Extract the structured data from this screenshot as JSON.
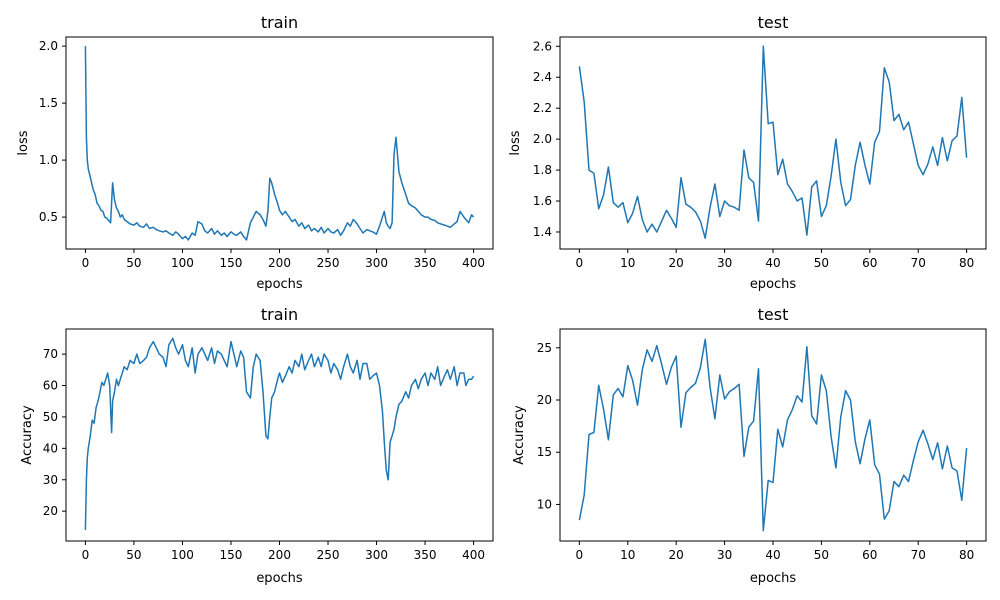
{
  "chart_data": [
    {
      "type": "line",
      "title": "train",
      "xlabel": "epochs",
      "ylabel": "loss",
      "xlim": [
        -20,
        420
      ],
      "ylim": [
        0.22,
        2.08
      ],
      "xticks": [
        0,
        50,
        100,
        150,
        200,
        250,
        300,
        350,
        400
      ],
      "yticks": [
        0.5,
        1.0,
        1.5,
        2.0
      ],
      "ytick_labels": [
        "0.5",
        "1.0",
        "1.5",
        "2.0"
      ],
      "color": "#1f77b4",
      "series": [
        {
          "x": [
            0,
            1,
            2,
            3,
            5,
            8,
            10,
            12,
            14,
            16,
            18,
            20,
            22,
            24,
            26,
            28,
            30,
            32,
            34,
            36,
            38,
            40,
            43,
            46,
            50,
            53,
            56,
            60,
            63,
            66,
            70,
            73,
            76,
            80,
            83,
            86,
            90,
            93,
            96,
            100,
            103,
            106,
            110,
            113,
            116,
            120,
            123,
            126,
            130,
            133,
            136,
            140,
            143,
            146,
            150,
            153,
            156,
            160,
            163,
            166,
            170,
            173,
            176,
            180,
            183,
            186,
            188,
            190,
            192,
            195,
            198,
            200,
            203,
            206,
            210,
            213,
            216,
            220,
            223,
            226,
            230,
            233,
            236,
            240,
            243,
            246,
            250,
            253,
            256,
            260,
            263,
            266,
            270,
            273,
            276,
            280,
            283,
            286,
            290,
            293,
            296,
            300,
            303,
            306,
            308,
            310,
            312,
            314,
            316,
            318,
            320,
            323,
            326,
            330,
            333,
            336,
            340,
            343,
            346,
            350,
            353,
            356,
            360,
            363,
            366,
            370,
            373,
            376,
            380,
            383,
            386,
            390,
            392,
            395,
            398,
            400
          ],
          "y": [
            2.0,
            1.2,
            1.0,
            0.92,
            0.85,
            0.74,
            0.7,
            0.62,
            0.6,
            0.56,
            0.55,
            0.5,
            0.49,
            0.47,
            0.45,
            0.8,
            0.65,
            0.58,
            0.55,
            0.5,
            0.52,
            0.48,
            0.46,
            0.44,
            0.43,
            0.45,
            0.42,
            0.41,
            0.44,
            0.4,
            0.41,
            0.39,
            0.38,
            0.37,
            0.38,
            0.36,
            0.34,
            0.37,
            0.35,
            0.31,
            0.33,
            0.3,
            0.36,
            0.34,
            0.46,
            0.44,
            0.38,
            0.36,
            0.4,
            0.35,
            0.38,
            0.34,
            0.36,
            0.33,
            0.37,
            0.35,
            0.34,
            0.37,
            0.33,
            0.3,
            0.45,
            0.5,
            0.55,
            0.52,
            0.48,
            0.42,
            0.55,
            0.84,
            0.8,
            0.7,
            0.62,
            0.56,
            0.52,
            0.55,
            0.5,
            0.46,
            0.48,
            0.42,
            0.45,
            0.4,
            0.43,
            0.38,
            0.4,
            0.37,
            0.41,
            0.36,
            0.4,
            0.37,
            0.36,
            0.39,
            0.34,
            0.38,
            0.45,
            0.42,
            0.48,
            0.44,
            0.4,
            0.36,
            0.39,
            0.38,
            0.37,
            0.35,
            0.42,
            0.5,
            0.55,
            0.45,
            0.42,
            0.4,
            0.45,
            1.05,
            1.2,
            0.9,
            0.8,
            0.7,
            0.62,
            0.6,
            0.58,
            0.55,
            0.52,
            0.5,
            0.5,
            0.48,
            0.47,
            0.45,
            0.44,
            0.43,
            0.42,
            0.41,
            0.44,
            0.46,
            0.55,
            0.5,
            0.48,
            0.45,
            0.52,
            0.5
          ]
        }
      ]
    },
    {
      "type": "line",
      "title": "test",
      "xlabel": "epochs",
      "ylabel": "loss",
      "xlim": [
        -4,
        84
      ],
      "ylim": [
        1.29,
        2.66
      ],
      "xticks": [
        0,
        10,
        20,
        30,
        40,
        50,
        60,
        70,
        80
      ],
      "yticks": [
        1.4,
        1.6,
        1.8,
        2.0,
        2.2,
        2.4,
        2.6
      ],
      "ytick_labels": [
        "1.4",
        "1.6",
        "1.8",
        "2.0",
        "2.2",
        "2.4",
        "2.6"
      ],
      "color": "#1f77b4",
      "series": [
        {
          "x": [
            0,
            1,
            2,
            3,
            4,
            5,
            6,
            7,
            8,
            9,
            10,
            11,
            12,
            13,
            14,
            15,
            16,
            17,
            18,
            19,
            20,
            21,
            22,
            23,
            24,
            25,
            26,
            27,
            28,
            29,
            30,
            31,
            32,
            33,
            34,
            35,
            36,
            37,
            38,
            39,
            40,
            41,
            42,
            43,
            44,
            45,
            46,
            47,
            48,
            49,
            50,
            51,
            52,
            53,
            54,
            55,
            56,
            57,
            58,
            59,
            60,
            61,
            62,
            63,
            64,
            65,
            66,
            67,
            68,
            69,
            70,
            71,
            72,
            73,
            74,
            75,
            76,
            77,
            78,
            79,
            80
          ],
          "y": [
            2.47,
            2.24,
            1.8,
            1.78,
            1.55,
            1.64,
            1.82,
            1.59,
            1.56,
            1.59,
            1.46,
            1.52,
            1.63,
            1.48,
            1.4,
            1.45,
            1.4,
            1.47,
            1.54,
            1.49,
            1.43,
            1.75,
            1.58,
            1.56,
            1.53,
            1.47,
            1.36,
            1.56,
            1.71,
            1.5,
            1.6,
            1.57,
            1.56,
            1.54,
            1.93,
            1.75,
            1.72,
            1.47,
            2.6,
            2.1,
            2.11,
            1.77,
            1.87,
            1.71,
            1.66,
            1.6,
            1.62,
            1.38,
            1.69,
            1.73,
            1.5,
            1.57,
            1.76,
            2.0,
            1.72,
            1.57,
            1.61,
            1.83,
            1.98,
            1.83,
            1.71,
            1.98,
            2.05,
            2.46,
            2.37,
            2.12,
            2.16,
            2.06,
            2.11,
            1.97,
            1.83,
            1.77,
            1.84,
            1.95,
            1.83,
            2.01,
            1.86,
            1.99,
            2.02,
            2.27,
            1.88
          ]
        }
      ]
    },
    {
      "type": "line",
      "title": "train",
      "xlabel": "epochs",
      "ylabel": "Accuracy",
      "xlim": [
        -20,
        420
      ],
      "ylim": [
        10.5,
        78
      ],
      "xticks": [
        0,
        50,
        100,
        150,
        200,
        250,
        300,
        350,
        400
      ],
      "yticks": [
        20,
        30,
        40,
        50,
        60,
        70
      ],
      "ytick_labels": [
        "20",
        "30",
        "40",
        "50",
        "60",
        "70"
      ],
      "color": "#1f77b4",
      "series": [
        {
          "x": [
            0,
            1,
            2,
            3,
            5,
            7,
            9,
            11,
            13,
            15,
            17,
            19,
            21,
            23,
            25,
            27,
            28,
            30,
            32,
            34,
            36,
            38,
            40,
            43,
            46,
            50,
            53,
            56,
            60,
            63,
            66,
            70,
            73,
            76,
            80,
            83,
            86,
            90,
            93,
            96,
            100,
            103,
            106,
            110,
            113,
            116,
            120,
            123,
            126,
            130,
            133,
            136,
            140,
            143,
            146,
            150,
            153,
            156,
            160,
            163,
            166,
            170,
            173,
            176,
            180,
            183,
            186,
            188,
            190,
            192,
            195,
            198,
            200,
            203,
            206,
            210,
            213,
            216,
            220,
            223,
            226,
            230,
            233,
            236,
            240,
            243,
            246,
            250,
            253,
            256,
            260,
            263,
            266,
            270,
            273,
            276,
            280,
            283,
            286,
            290,
            293,
            296,
            300,
            303,
            306,
            308,
            310,
            312,
            314,
            316,
            318,
            320,
            323,
            326,
            330,
            333,
            336,
            340,
            343,
            346,
            350,
            353,
            356,
            360,
            363,
            366,
            370,
            373,
            376,
            380,
            383,
            386,
            390,
            392,
            395,
            398,
            400
          ],
          "y": [
            14,
            30,
            37,
            40,
            44,
            49,
            48,
            53,
            55,
            58,
            61,
            60,
            62,
            64,
            60,
            45,
            55,
            58,
            62,
            60,
            62,
            64,
            66,
            65,
            68,
            67,
            70,
            67,
            68,
            69,
            72,
            74,
            72,
            70,
            69,
            66,
            73,
            75,
            72,
            70,
            73,
            68,
            66,
            72,
            64,
            70,
            72,
            70,
            68,
            72,
            67,
            71,
            70,
            68,
            66,
            74,
            70,
            66,
            71,
            69,
            58,
            56,
            66,
            70,
            68,
            58,
            44,
            43,
            50,
            56,
            58,
            62,
            64,
            61,
            63,
            66,
            64,
            68,
            66,
            70,
            65,
            68,
            70,
            66,
            69,
            66,
            70,
            68,
            64,
            67,
            65,
            62,
            66,
            70,
            66,
            64,
            68,
            62,
            67,
            67,
            62,
            63,
            64,
            60,
            52,
            42,
            33,
            30,
            42,
            44,
            46,
            50,
            54,
            55,
            58,
            56,
            60,
            62,
            59,
            62,
            64,
            60,
            64,
            62,
            66,
            60,
            63,
            65,
            62,
            66,
            60,
            64,
            64,
            60,
            62,
            62,
            63
          ]
        }
      ]
    },
    {
      "type": "line",
      "title": "test",
      "xlabel": "epochs",
      "ylabel": "Accuracy",
      "xlim": [
        -4,
        84
      ],
      "ylim": [
        6.5,
        26.8
      ],
      "xticks": [
        0,
        10,
        20,
        30,
        40,
        50,
        60,
        70,
        80
      ],
      "yticks": [
        10,
        15,
        20,
        25
      ],
      "ytick_labels": [
        "10",
        "15",
        "20",
        "25"
      ],
      "color": "#1f77b4",
      "series": [
        {
          "x": [
            0,
            1,
            2,
            3,
            4,
            5,
            6,
            7,
            8,
            9,
            10,
            11,
            12,
            13,
            14,
            15,
            16,
            17,
            18,
            19,
            20,
            21,
            22,
            23,
            24,
            25,
            26,
            27,
            28,
            29,
            30,
            31,
            32,
            33,
            34,
            35,
            36,
            37,
            38,
            39,
            40,
            41,
            42,
            43,
            44,
            45,
            46,
            47,
            48,
            49,
            50,
            51,
            52,
            53,
            54,
            55,
            56,
            57,
            58,
            59,
            60,
            61,
            62,
            63,
            64,
            65,
            66,
            67,
            68,
            69,
            70,
            71,
            72,
            73,
            74,
            75,
            76,
            77,
            78,
            79,
            80
          ],
          "y": [
            8.5,
            10.9,
            16.7,
            16.9,
            21.4,
            19.1,
            16.2,
            20.5,
            21.1,
            20.3,
            23.3,
            21.9,
            19.5,
            22.9,
            24.8,
            23.7,
            25.2,
            23.4,
            21.5,
            23.1,
            24.2,
            17.4,
            20.7,
            21.2,
            21.6,
            23.1,
            25.8,
            21.2,
            18.2,
            22.4,
            20.1,
            20.8,
            21.1,
            21.5,
            14.6,
            17.4,
            18.0,
            23.0,
            7.5,
            12.3,
            12.1,
            17.2,
            15.5,
            18.1,
            19.1,
            20.4,
            19.8,
            25.1,
            18.5,
            17.7,
            22.4,
            20.9,
            16.5,
            13.5,
            18.4,
            20.9,
            20.0,
            16.0,
            13.9,
            16.3,
            18.1,
            13.8,
            12.9,
            8.6,
            9.4,
            12.2,
            11.7,
            12.8,
            12.2,
            14.2,
            16.0,
            17.1,
            15.8,
            14.3,
            15.9,
            13.4,
            15.6,
            13.5,
            13.2,
            10.4,
            15.4
          ]
        }
      ]
    }
  ]
}
